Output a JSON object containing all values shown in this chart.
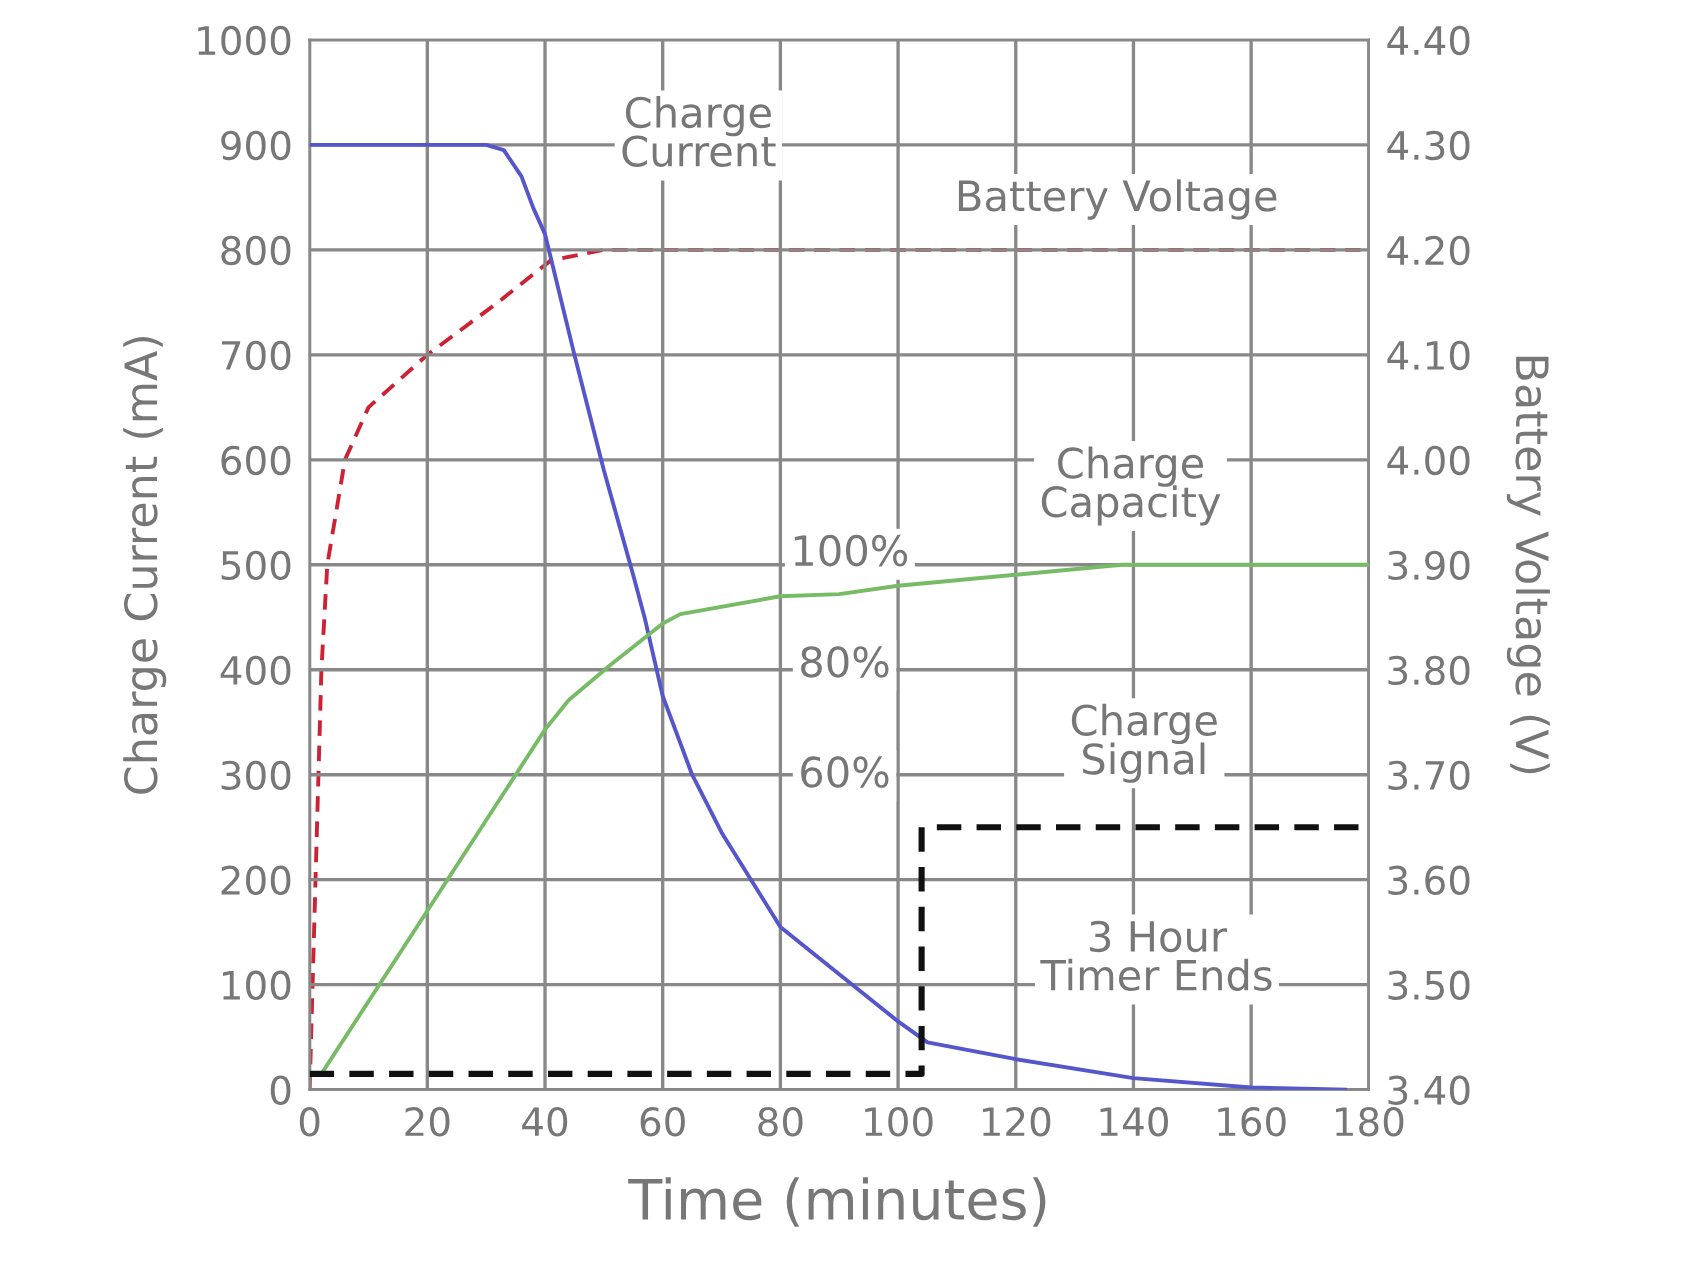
{
  "chart_data": {
    "type": "line",
    "xlabel": "Time (minutes)",
    "ylabel": "Charge Current (mA)",
    "y2label": "Battery Voltage (V)",
    "xlim": [
      0,
      180
    ],
    "xticks": [
      0,
      20,
      40,
      60,
      80,
      100,
      120,
      140,
      160,
      180
    ],
    "ylim": [
      0,
      1000
    ],
    "yticks": [
      0,
      100,
      200,
      300,
      400,
      500,
      600,
      700,
      800,
      900,
      1000
    ],
    "y2lim": [
      3.4,
      4.4
    ],
    "y2ticks": [
      {
        "value": 3.4,
        "label": "3.40"
      },
      {
        "value": 3.5,
        "label": "3.50"
      },
      {
        "value": 3.6,
        "label": "3.60"
      },
      {
        "value": 3.7,
        "label": "3.70"
      },
      {
        "value": 3.8,
        "label": "3.80"
      },
      {
        "value": 3.9,
        "label": "3.90"
      },
      {
        "value": 4.0,
        "label": "4.00"
      },
      {
        "value": 4.1,
        "label": "4.10"
      },
      {
        "value": 4.2,
        "label": "4.20"
      },
      {
        "value": 4.3,
        "label": "4.30"
      },
      {
        "value": 4.4,
        "label": "4.40"
      }
    ],
    "grid": true,
    "legend": false,
    "marker": "none",
    "series": [
      {
        "color": "#5555cc",
        "line_style": "solid",
        "x": [
          0,
          30,
          33,
          36,
          38,
          40,
          45,
          50,
          55,
          57,
          60,
          65,
          70,
          75,
          80,
          90,
          100,
          105,
          120,
          140,
          160,
          176
        ],
        "values": [
          900,
          900,
          895,
          870,
          840,
          815,
          700,
          590,
          490,
          448,
          375,
          300,
          245,
          200,
          155,
          110,
          65,
          45,
          29,
          11,
          2,
          0
        ]
      },
      {
        "color": "#cc2233",
        "line_style": "dashed",
        "axis": "y2",
        "x": [
          0,
          0.5,
          1,
          1.5,
          2,
          3,
          6,
          10,
          20,
          32,
          41,
          50,
          180
        ],
        "values": [
          3.4,
          3.5,
          3.6,
          3.7,
          3.8,
          3.9,
          4.0,
          4.05,
          4.1,
          4.15,
          4.19,
          4.2,
          4.2
        ]
      },
      {
        "color": "#77bb66",
        "line_style": "solid",
        "x": [
          2,
          40,
          44,
          51,
          60,
          63,
          80,
          90,
          100,
          138,
          180
        ],
        "values": [
          15,
          343,
          371,
          404,
          444,
          453,
          470,
          472,
          480,
          500,
          500
        ]
      },
      {
        "type": "step",
        "color": "#111111",
        "line_style": "dashed",
        "x": [
          0,
          104,
          180
        ],
        "values": [
          15,
          250,
          250
        ]
      }
    ],
    "annotations": [
      "Charge\nCurrent",
      "Battery Voltage",
      "Charge\nCapacity",
      "100%",
      "80%",
      "60%",
      "Charge\nSignal",
      "3 Hour\nTimer Ends"
    ]
  }
}
